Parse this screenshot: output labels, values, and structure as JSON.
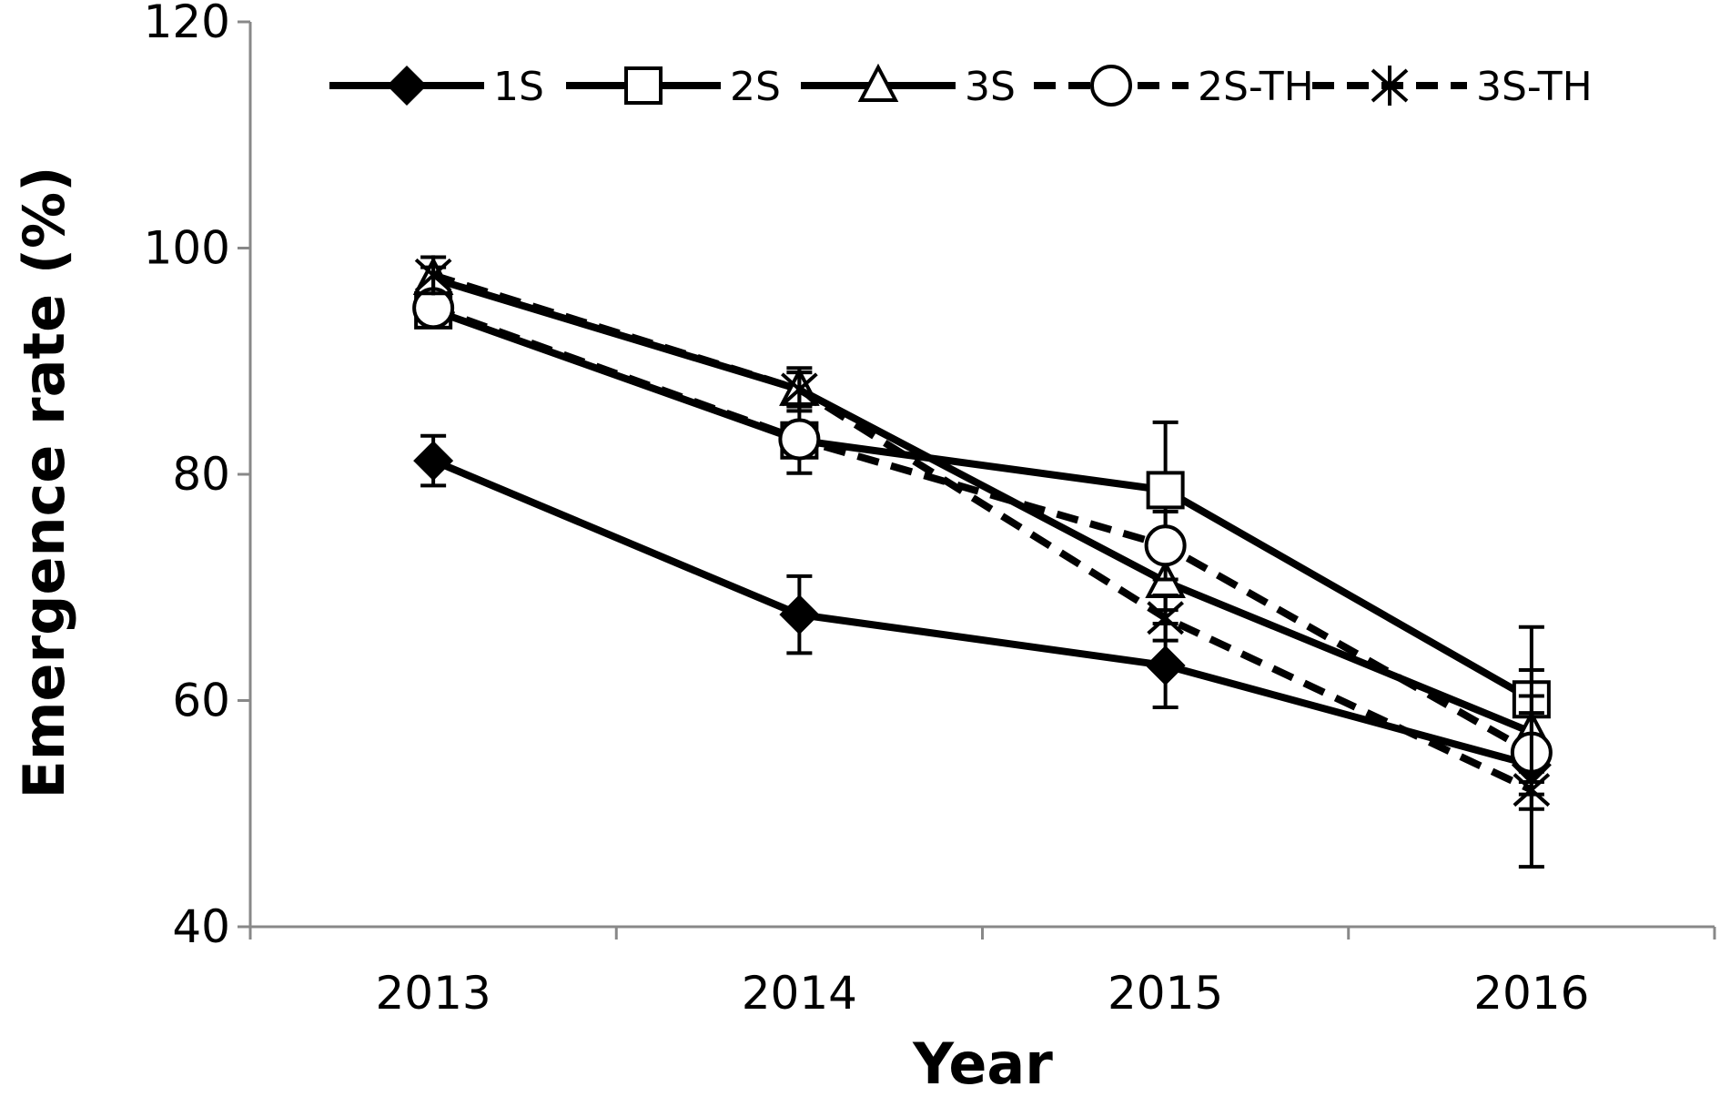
{
  "chart_data": {
    "type": "line",
    "title": "",
    "xlabel": "Year",
    "ylabel": "Emergence rate (%)",
    "categories": [
      "2013",
      "2014",
      "2015",
      "2016"
    ],
    "ylim": [
      40,
      120
    ],
    "yticks": [
      "40",
      "60",
      "80",
      "100",
      "120"
    ],
    "grid": false,
    "legend_position": "top",
    "series": [
      {
        "name": "1S",
        "marker": "diamond-filled",
        "dash": false,
        "values": [
          81.2,
          67.6,
          63.1,
          54.3
        ],
        "errors": [
          2.2,
          3.4,
          3.7,
          1.5
        ]
      },
      {
        "name": "2S",
        "marker": "square-open",
        "dash": false,
        "values": [
          94.5,
          83.0,
          78.6,
          60.1
        ],
        "errors": [
          1.0,
          1.5,
          6.0,
          6.4
        ]
      },
      {
        "name": "3S",
        "marker": "triangle-open",
        "dash": false,
        "values": [
          97.3,
          87.5,
          70.5,
          57.2
        ],
        "errors": [
          1.0,
          1.5,
          2.5,
          5.5
        ]
      },
      {
        "name": "2S-TH",
        "marker": "circle-open",
        "dash": true,
        "values": [
          94.7,
          83.1,
          73.7,
          55.4
        ],
        "errors": [
          1.0,
          3.0,
          3.0,
          5.0
        ]
      },
      {
        "name": "3S-TH",
        "marker": "asterisk",
        "dash": true,
        "values": [
          97.6,
          87.5,
          67.3,
          52.1
        ],
        "errors": [
          1.6,
          1.9,
          2.0,
          6.8
        ]
      }
    ]
  }
}
